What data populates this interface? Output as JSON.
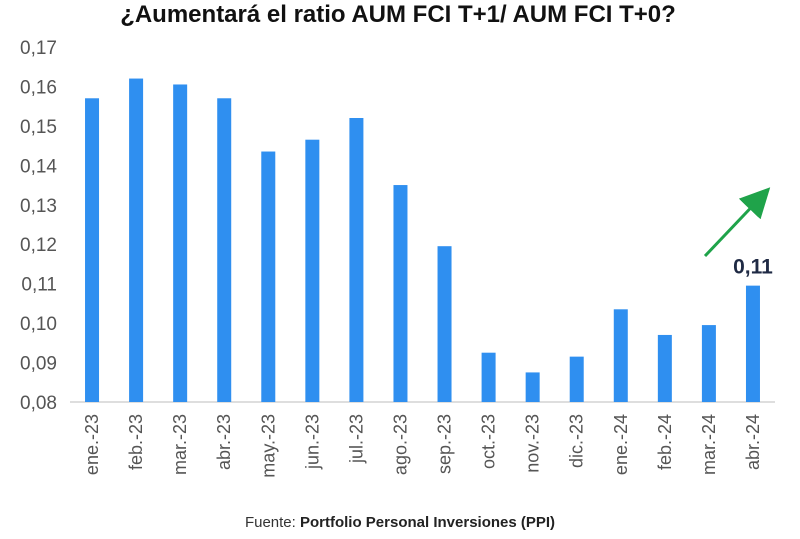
{
  "chart_data": {
    "type": "bar",
    "title": "¿Aumentará el ratio AUM FCI T+1/ AUM FCI T+0?",
    "categories": [
      "ene.-23",
      "feb.-23",
      "mar.-23",
      "abr.-23",
      "may.-23",
      "jun.-23",
      "jul.-23",
      "ago.-23",
      "sep.-23",
      "oct.-23",
      "nov.-23",
      "dic.-23",
      "ene.-24",
      "feb.-24",
      "mar.-24",
      "abr.-24"
    ],
    "values": [
      0.157,
      0.162,
      0.1605,
      0.157,
      0.1435,
      0.1465,
      0.152,
      0.135,
      0.1195,
      0.0925,
      0.0875,
      0.0915,
      0.1035,
      0.097,
      0.0995,
      0.1095
    ],
    "ylim": [
      0.08,
      0.17
    ],
    "yticks": [
      "0,08",
      "0,09",
      "0,10",
      "0,11",
      "0,12",
      "0,13",
      "0,14",
      "0,15",
      "0,16",
      "0,17"
    ],
    "xlabel": "",
    "ylabel": "",
    "grid": false,
    "legend": "none",
    "bar_color": "#2f8ff0",
    "annotation": {
      "label": "0,11",
      "category": "abr.-24"
    },
    "trend_arrow": {
      "color": "#1fa34a",
      "direction": "up-right"
    }
  },
  "footer": {
    "prefix": "Fuente: ",
    "source": "Portfolio Personal Inversiones (PPI)"
  }
}
